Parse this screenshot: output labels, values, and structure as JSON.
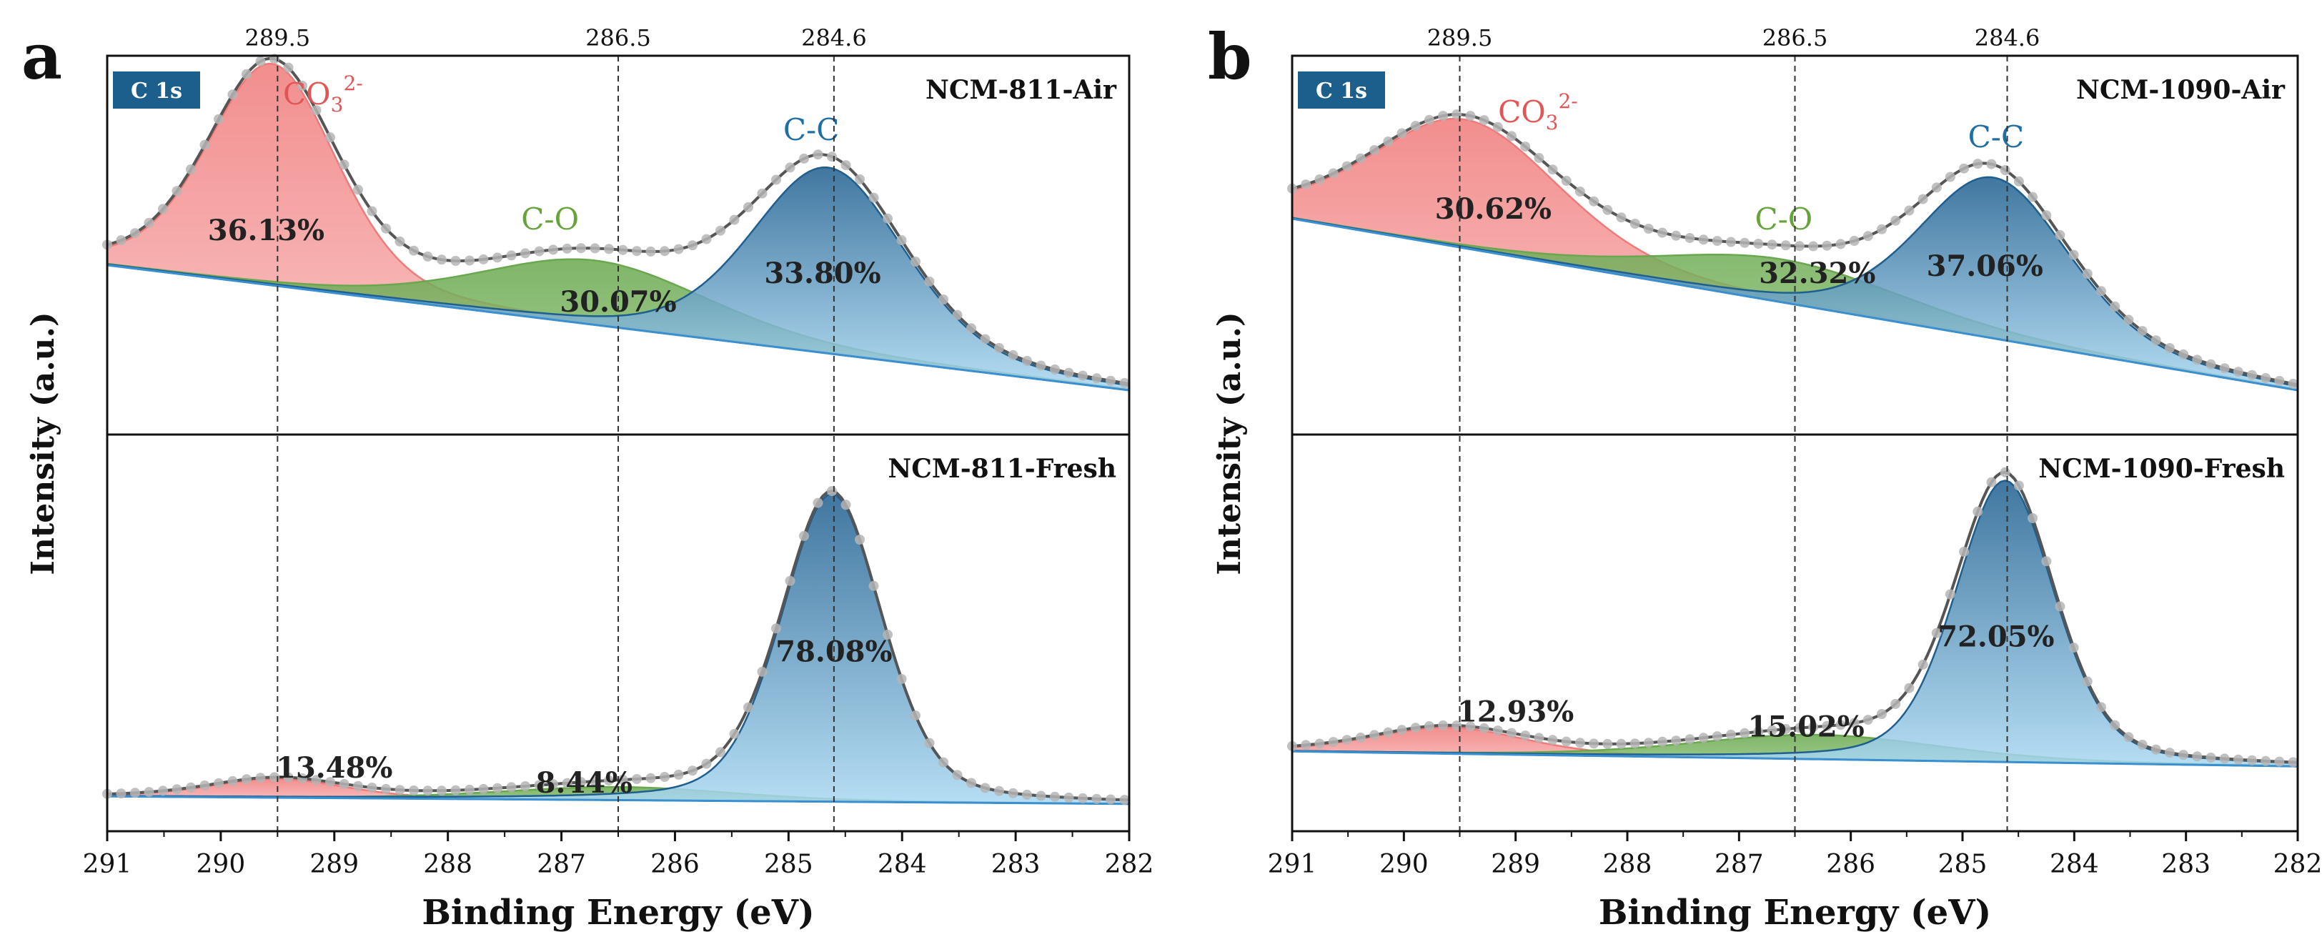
{
  "figure": {
    "colors": {
      "co3": "#f07a7a",
      "co3_dark": "#f9b9b9",
      "co": "#8fc47a",
      "co_dark": "#6aa84f",
      "cc_dark": "#1f5f8f",
      "cc_light": "#a9d8f2",
      "label_co3": "#e25555",
      "label_co": "#67a33a",
      "label_cc": "#1f6fa4",
      "badge": "#1c5f8c",
      "envelope": "#555555",
      "points": "#b5b5b5"
    }
  },
  "chart_data": [
    {
      "type": "area",
      "panel_letter": "a",
      "xlabel": "Binding Energy (eV)",
      "ylabel": "Intensity (a.u.)",
      "xlim": [
        291,
        282
      ],
      "x_reversed": true,
      "x_ticks": [
        "291",
        "290",
        "289",
        "288",
        "287",
        "286",
        "285",
        "284",
        "283",
        "282"
      ],
      "reference_lines": [
        {
          "x": 289.5,
          "label": "289.5"
        },
        {
          "x": 286.5,
          "label": "286.5"
        },
        {
          "x": 284.6,
          "label": "284.6"
        }
      ],
      "badge": "C 1s",
      "subplots": [
        {
          "name": "NCM-811-Air",
          "ylim": [
            0,
            1
          ],
          "background": {
            "x": [
              291,
              282
            ],
            "y": [
              0.45,
              0.1
            ]
          },
          "peaks": [
            {
              "species": "CO3 2-",
              "label_main": "CO",
              "label_sub": "3",
              "label_sup": "2-",
              "center": 289.55,
              "height": 0.62,
              "fwhm": 1.35,
              "percent": "36.13%"
            },
            {
              "species": "C-O",
              "label_main": "C-O",
              "center": 286.7,
              "height": 0.18,
              "fwhm": 2.4,
              "percent": "30.07%"
            },
            {
              "species": "C-C",
              "label_main": "C-C",
              "center": 284.65,
              "height": 0.52,
              "fwhm": 1.6,
              "percent": "33.80%"
            }
          ]
        },
        {
          "name": "NCM-811-Fresh",
          "ylim": [
            0,
            1
          ],
          "background": {
            "x": [
              291,
              282
            ],
            "y": [
              0.07,
              0.05
            ]
          },
          "peaks": [
            {
              "species": "CO3 2-",
              "center": 289.5,
              "height": 0.05,
              "fwhm": 1.4,
              "percent": "13.48%"
            },
            {
              "species": "C-O",
              "center": 286.5,
              "height": 0.035,
              "fwhm": 2.4,
              "percent": "8.44%"
            },
            {
              "species": "C-C",
              "center": 284.62,
              "height": 0.82,
              "fwhm": 1.05,
              "percent": "78.08%"
            }
          ]
        }
      ]
    },
    {
      "type": "area",
      "panel_letter": "b",
      "xlabel": "Binding Energy (eV)",
      "ylabel": "Intensity (a.u.)",
      "xlim": [
        291,
        282
      ],
      "x_reversed": true,
      "x_ticks": [
        "291",
        "290",
        "289",
        "288",
        "287",
        "286",
        "285",
        "284",
        "283",
        "282"
      ],
      "reference_lines": [
        {
          "x": 289.5,
          "label": "289.5"
        },
        {
          "x": 286.5,
          "label": "286.5"
        },
        {
          "x": 284.6,
          "label": "284.6"
        }
      ],
      "badge": "C 1s",
      "subplots": [
        {
          "name": "NCM-1090-Air",
          "ylim": [
            0,
            1
          ],
          "background": {
            "x": [
              291,
              282
            ],
            "y": [
              0.58,
              0.1
            ]
          },
          "peaks": [
            {
              "species": "CO3 2-",
              "label_main": "CO",
              "label_sub": "3",
              "label_sup": "2-",
              "center": 289.45,
              "height": 0.36,
              "fwhm": 2.0,
              "percent": "30.62%"
            },
            {
              "species": "C-O",
              "label_main": "C-O",
              "center": 286.6,
              "height": 0.12,
              "fwhm": 2.6,
              "percent": "32.32%"
            },
            {
              "species": "C-C",
              "center": 284.72,
              "height": 0.45,
              "fwhm": 1.6,
              "label_main": "C-C",
              "percent": "37.06%"
            }
          ]
        },
        {
          "name": "NCM-1090-Fresh",
          "ylim": [
            0,
            1
          ],
          "background": {
            "x": [
              291,
              282
            ],
            "y": [
              0.19,
              0.15
            ]
          },
          "peaks": [
            {
              "species": "CO3 2-",
              "center": 289.6,
              "height": 0.07,
              "fwhm": 1.6,
              "percent": "12.93%"
            },
            {
              "species": "C-O",
              "center": 286.3,
              "height": 0.065,
              "fwhm": 2.6,
              "percent": "15.02%"
            },
            {
              "species": "C-C",
              "center": 284.62,
              "height": 0.75,
              "fwhm": 1.05,
              "percent": "72.05%"
            }
          ]
        }
      ]
    }
  ]
}
